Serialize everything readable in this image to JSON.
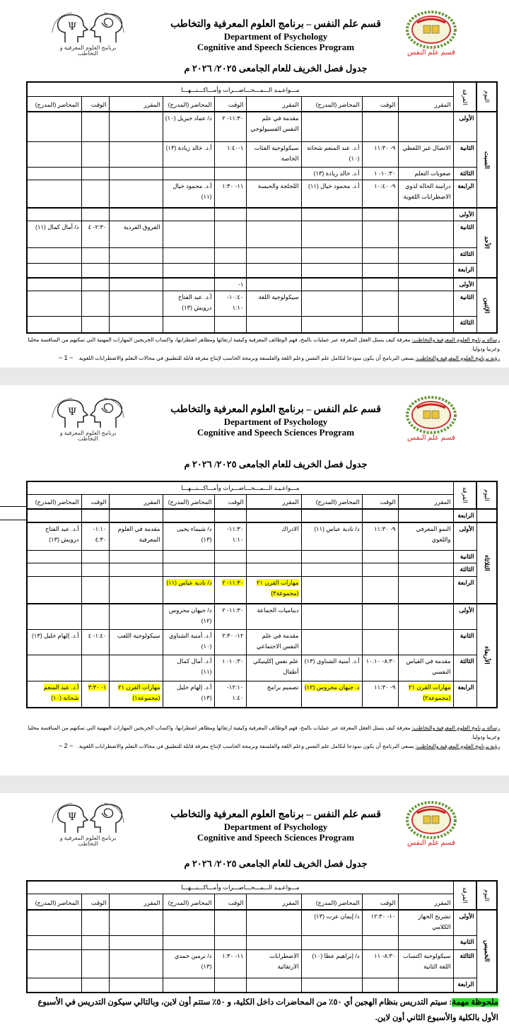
{
  "header": {
    "title_ar": "قسم علم النفس – برنامج العلوم المعرفية والتخاطب",
    "title_en_1": "Department of Psychology",
    "title_en_2": "Cognitive and Speech Sciences Program",
    "schedule_title": "جدول فصل الخريف للعام الجامعى ٢٠٢٥/ ٢٠٢٦ م",
    "logo_left_text": "برنامج العلوم المعرفية و التخاطب",
    "logo_right_text": "قسم علم النفس"
  },
  "table_header": {
    "day": "اليوم",
    "level": "الفرقة",
    "title": "مـــواعـيـد الـــمـــحـــاضـــرات وأمـــاكـــنـــهـــا",
    "course": "المقرر",
    "time": "الوقت",
    "lecturer": "المحاضر (المدرج)"
  },
  "colors": {
    "highlight": "#ffff00",
    "note_highlight": "#22dd22",
    "band": "#e9e9e9"
  },
  "pages": [
    {
      "page_number": "~ 1 ~",
      "days": [
        {
          "name": "السبت",
          "periods": [
            {
              "period": "الأولى",
              "slots": [
                null,
                {
                  "course": "مقدمة في علم النفس الفسيولوجي",
                  "time": "١١:٣٠- ٢",
                  "lecturer": "د/ عماد جبريل (١٠)"
                },
                null
              ]
            },
            {
              "period": "الثانية",
              "slots": [
                {
                  "course": "الاتصال غير اللفظي",
                  "time": "٩- ١١:٣٠",
                  "lecturer": "أ.د. عبد المنعم شحاتة (١٠)"
                },
                {
                  "course": "سيكولوجية الفئات الخاصة",
                  "time": "١-١:٤٠",
                  "lecturer": "أ.د. خالد زيادة (١٣)"
                },
                null
              ]
            },
            {
              "period": "الثالثة",
              "slots": [
                {
                  "course": "صعوبات التعلم",
                  "time": "١٠:٣٠- ١",
                  "lecturer": "أ.د. خالد زيادة (١٣)"
                },
                null,
                null
              ]
            },
            {
              "period": "الرابعة",
              "slots": [
                {
                  "course": "دراسة الحالة لذوي الاضطرابات اللغوية",
                  "time": "٩- ١٠:٤٠",
                  "lecturer": "أ.د. محمود خيال (١١)"
                },
                {
                  "course": "اللجلجة والحبسة",
                  "time": "١١- ١:٣٠",
                  "lecturer": "أ.د. محمود خيال (١١)"
                },
                null
              ]
            }
          ]
        },
        {
          "name": "الأحد",
          "periods": [
            {
              "period": "الأولى",
              "slots": [
                null,
                null,
                null
              ]
            },
            {
              "period": "الثانية",
              "slots": [
                null,
                null,
                {
                  "course": "الفروق الفردية",
                  "time": "٢:٣٠- ٤",
                  "lecturer": "د/ أمال كمال (١١)"
                }
              ]
            },
            {
              "period": "الثالثة",
              "slots": [
                null,
                null,
                null
              ]
            },
            {
              "period": "الرابعة",
              "slots": [
                null,
                null,
                null
              ]
            }
          ]
        },
        {
          "name": "الإثنين",
          "periods": [
            {
              "period": "الأولى",
              "slots": [
                null,
                {
                  "course": "",
                  "time": "١-",
                  "lecturer": ""
                },
                null
              ]
            },
            {
              "period": "الثانية",
              "slots": [
                null,
                {
                  "course": "سيكولوجية اللغة",
                  "time": "١٠:٤٠- ١:١٠",
                  "lecturer": "أ.د. عبد الفتاح درويش (١٣)"
                },
                null
              ]
            },
            {
              "period": "الثالثة",
              "slots": [
                null,
                null,
                null
              ]
            }
          ]
        }
      ],
      "mission_label": "رسالة برنامج العلوم المعرفية والتخاطب:",
      "mission_text": " معرفة كيف يتمثل العقل المعرفة عبر عمليات بالمخ، فهم الوظائف المعرفية وكيفية ارتقائها ومظاهر اضطرابها، واكساب الخريجين المهارات المهنية التي تمكنهم من المنافسة محليا وعربيا ودوليا.",
      "vision_label": "رؤية برنامج العلوم المعرفية والتخاطب:",
      "vision_text": " يسعى البرنامج أن يكون نموذجا لتكامل علم النفس وعلم اللغة والفلسفة وبرمجة الحاسب لإنتاج معرفة قابلة للتطبيق في مجالات التعلم والاضطرابات اللغوية."
    },
    {
      "page_number": "~ 2 ~",
      "days": [
        {
          "name": "",
          "periods": [
            {
              "period": "الرابعة",
              "slots": [
                null,
                null,
                null
              ]
            }
          ]
        },
        {
          "name": "الثلاثاء",
          "periods": [
            {
              "period": "الأولى",
              "slots": [
                {
                  "course": "النمو المعرفي واللغوي",
                  "time": "٩- ١١:٣٠",
                  "lecturer": "د/ نادية عباس (١١)"
                },
                {
                  "course": "الادراك",
                  "time": "١١:٣٠- ١:١٠",
                  "lecturer": "د/ شيماء يحيى (١٣)"
                },
                {
                  "course": "مقدمة في العلوم المعرفية",
                  "time": "١:١٠- ٤:٣٠",
                  "lecturer": "أ.د. عبد الفتاح درويش (١٣)"
                }
              ]
            },
            {
              "period": "الثانية",
              "slots": [
                null,
                null,
                null
              ]
            },
            {
              "period": "الثالثة",
              "slots": [
                null,
                null,
                null
              ]
            },
            {
              "period": "الرابعة",
              "slots": [
                null,
                {
                  "course": "مهارات القرن ٢١ (مجموعة٣)",
                  "time": "١١:٣٠- ٢",
                  "lecturer": "د/ نادية عباس (١١)",
                  "highlight": [
                    "course",
                    "time",
                    "lecturer"
                  ]
                },
                null
              ]
            }
          ]
        },
        {
          "name": "الأربعاء",
          "periods": [
            {
              "period": "الأولى",
              "slots": [
                null,
                {
                  "course": "ديناميات الجماعة",
                  "time": "١١:٣٠- ٢",
                  "lecturer": "د/ جيهان محروس (١٢)"
                },
                null
              ]
            },
            {
              "period": "الثانية",
              "slots": [
                null,
                {
                  "course": "مقدمة في علم النفس الاجتماعي",
                  "time": "١٢- ٢:٣٠",
                  "lecturer": "أ.د. أمنية الشناوي (١٠)"
                },
                {
                  "course": "سيكولوجية اللعب",
                  "time": "١:٤٠- ٤",
                  "lecturer": "أ.د. إلهام خليل (١٣)"
                }
              ]
            },
            {
              "period": "الثالثة",
              "slots": [
                {
                  "course": "مقدمة في القياس النفسي",
                  "time": "٨:٣٠- ١٠:١٠",
                  "lecturer": "أ.د. أمنية الشناوي (١٣)"
                },
                {
                  "course": "علم نفس إكلينيكي أطفال",
                  "time": "١٠:٣٠- ١",
                  "lecturer": "أ.د. أمال كمال (١١)"
                },
                null
              ]
            },
            {
              "period": "الرابعة",
              "slots": [
                {
                  "course": "مهارات القرن ٢١ (مجموعة٢)",
                  "time": "٩- ١١:٣٠",
                  "lecturer": "د. جيهان محروس (١٢)",
                  "highlight": [
                    "course",
                    "lecturer"
                  ]
                },
                {
                  "course": "تصميم برامج",
                  "time": "١٢:١٠- ١:٤٠",
                  "lecturer": "أ.د. إلهام خليل (١٣)"
                },
                {
                  "course": "مهارات القرن ٢١ (مجموعة١)",
                  "time": "١- ٣:٣٠",
                  "lecturer": "أ.د. عبد المنعم شحاتة (١٠)",
                  "highlight": [
                    "course",
                    "time",
                    "lecturer"
                  ]
                }
              ]
            }
          ]
        }
      ],
      "mission_label": "رسالة برنامج العلوم المعرفية والتخاطب:",
      "mission_text": " معرفة كيف يتمثل العقل المعرفة عبر عمليات بالمخ، فهم الوظائف المعرفية وكيفية ارتقائها ومظاهر اضطرابها، واكساب الخريجين المهارات المهنية التي تمكنهم من المنافسة محليا وعربيا ودوليا.",
      "vision_label": "رؤية برنامج العلوم المعرفية والتخاطب:",
      "vision_text": " يسعى البرنامج أن يكون نموذجا لتكامل علم النفس وعلم اللغة والفلسفة وبرمجة الحاسب لإنتاج معرفة قابلة للتطبيق في مجالات التعلم والاضطرابات اللغوية."
    },
    {
      "days": [
        {
          "name": "الخميس",
          "periods": [
            {
              "period": "الأولى",
              "slots": [
                {
                  "course": "تشريح الجهاز الكلامي",
                  "time": "١٠- ١٢:٣٠",
                  "lecturer": "د/ إيمان عزت (١٣)"
                },
                null,
                null
              ]
            },
            {
              "period": "الثانية",
              "slots": [
                null,
                null,
                null
              ]
            },
            {
              "period": "الثالثة",
              "slots": [
                {
                  "course": "سيكولوجية اكتساب اللغة الثانية",
                  "time": "٨:٣٠- ١١",
                  "lecturer": "د/ إبراهيم عطا (١٠)"
                },
                {
                  "course": "الاضطرابات الارتقائية",
                  "time": "١١- ١:٣٠",
                  "lecturer": "د/ نرمين حمدي (١٣)"
                },
                null
              ]
            },
            {
              "period": "الرابعة",
              "slots": [
                null,
                null,
                null
              ]
            }
          ]
        }
      ],
      "note_label": "ملحوظة مهمة",
      "note_text": ": سيتم التدريس بنظام الهجين أي ٥٠٪ من المحاضرات داخل الكلية، و ٥٠٪ ستتم أون لاين، وبالتالي سيكون التدريس في الأسبوع الأول بالكلية والأسبوع الثاني أون لاين."
    }
  ]
}
